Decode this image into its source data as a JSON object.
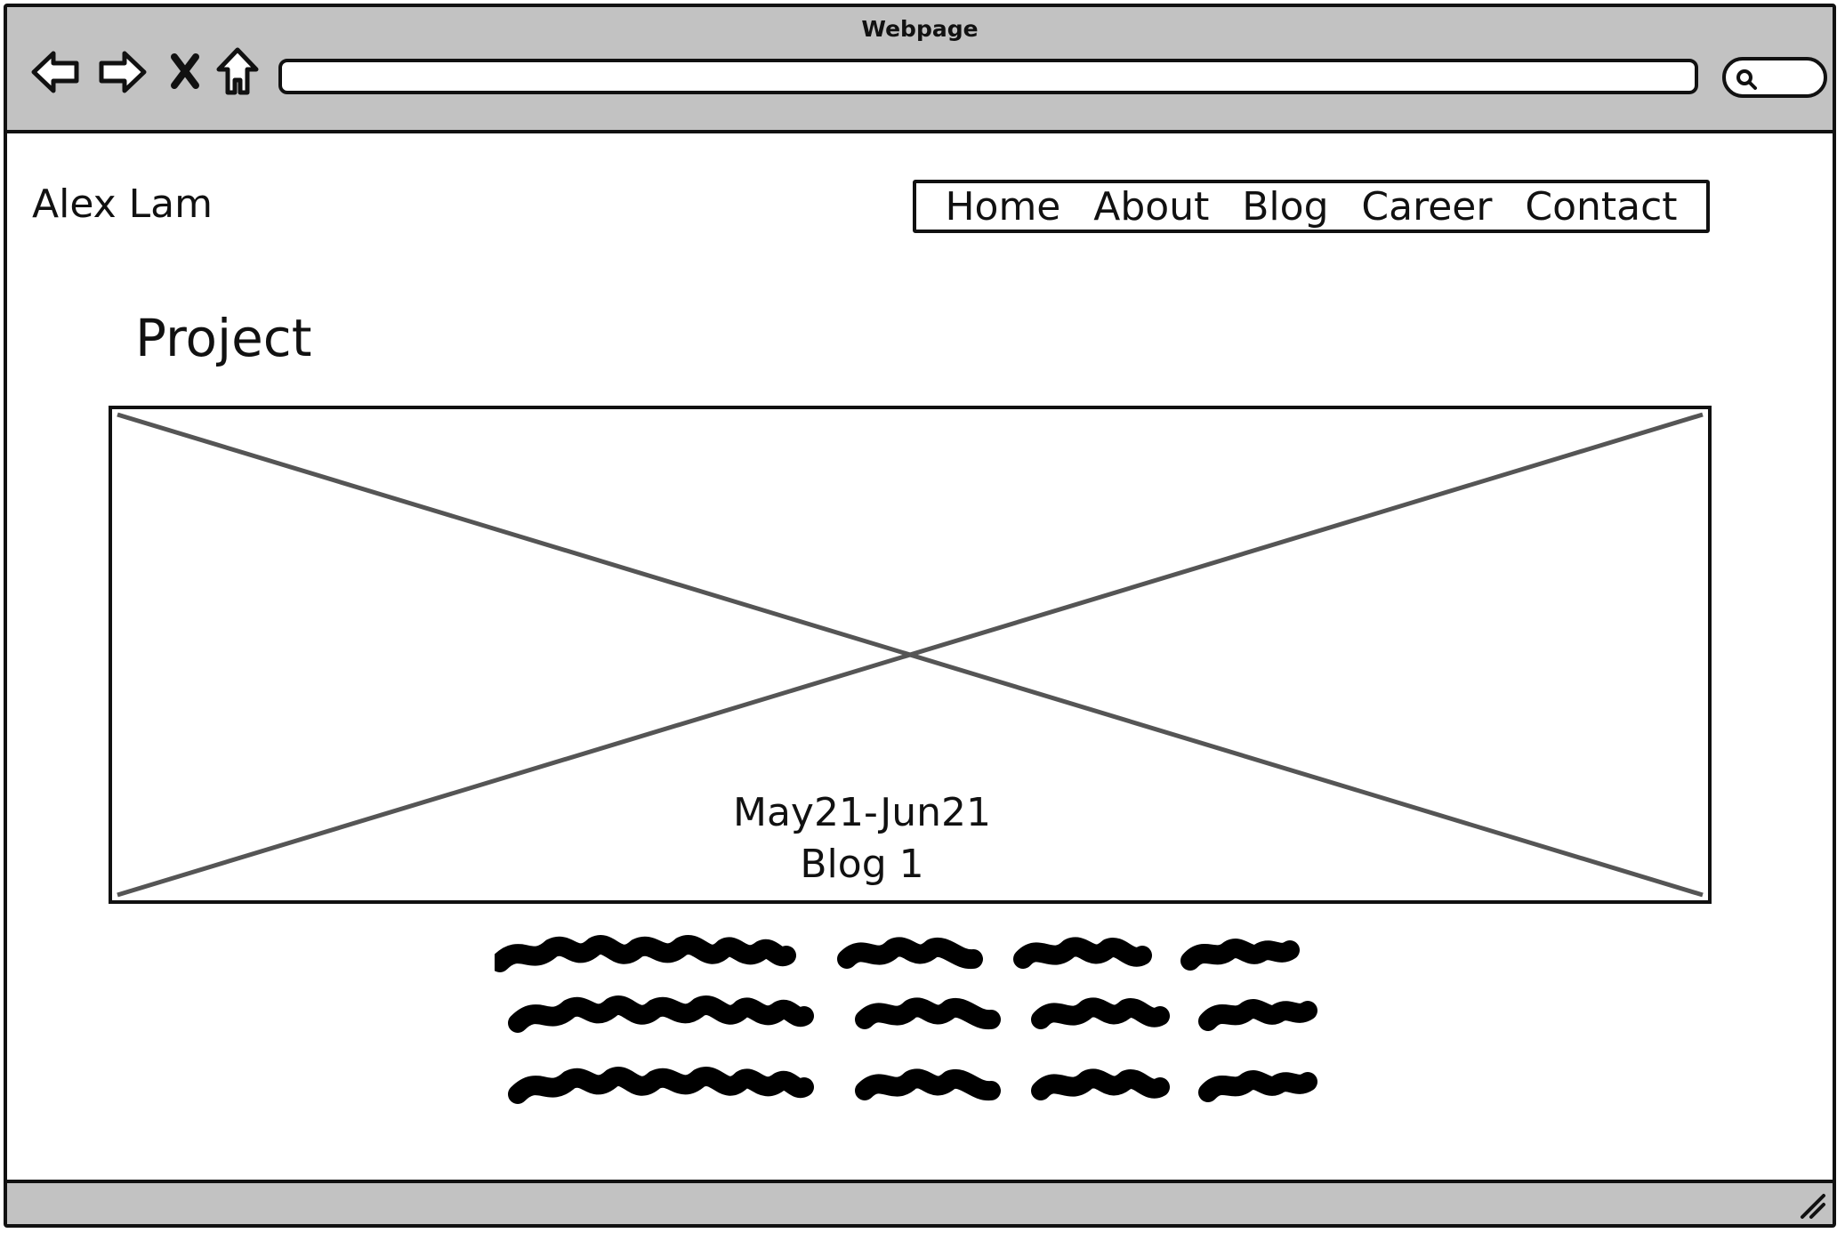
{
  "browser": {
    "title": "Webpage",
    "url": ""
  },
  "site": {
    "title": "Alex Lam"
  },
  "nav": {
    "items": [
      "Home",
      "About",
      "Blog",
      "Career",
      "Contact"
    ]
  },
  "content": {
    "heading": "Project",
    "image_caption_date": "May21-Jun21",
    "image_caption_title": "Blog 1"
  }
}
